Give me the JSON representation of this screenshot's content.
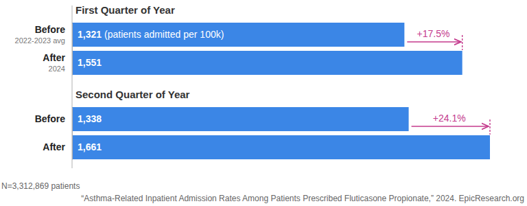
{
  "chart_data": [
    {
      "type": "bar",
      "orientation": "horizontal",
      "title": "First Quarter of Year",
      "categories": [
        "Before",
        "After"
      ],
      "category_sublabels": [
        "2022-2023 avg",
        "2024"
      ],
      "values": [
        1321,
        1551
      ],
      "value_labels": [
        "1,321",
        "1,551"
      ],
      "value_label_note": "(patients admitted per 100k)",
      "annotation": "+17.5%",
      "xlim": [
        0,
        1661
      ],
      "data_labels": true,
      "tick_labels": "y",
      "color": "#3b86e6"
    },
    {
      "type": "bar",
      "orientation": "horizontal",
      "title": "Second Quarter of Year",
      "categories": [
        "Before",
        "After"
      ],
      "values": [
        1338,
        1661
      ],
      "value_labels": [
        "1,338",
        "1,661"
      ],
      "annotation": "+24.1%",
      "xlim": [
        0,
        1661
      ],
      "data_labels": true,
      "tick_labels": "y",
      "color": "#3b86e6"
    }
  ],
  "footnote": "N=3,312,869 patients",
  "source": "“Asthma-Related Inpatient Admission Rates Among Patients Prescribed Fluticasone Propionate,” 2024. EpicResearch.org"
}
